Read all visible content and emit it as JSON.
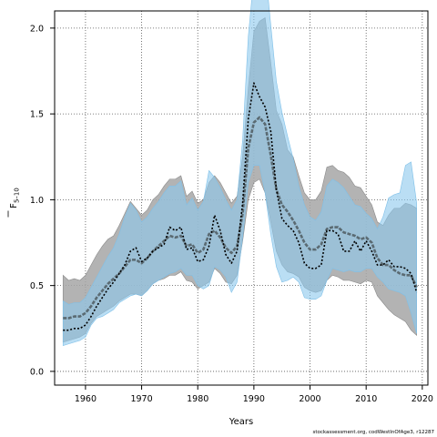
{
  "chart_data": {
    "type": "line",
    "xlabel": "Years",
    "ylabel_main": "F",
    "ylabel_sub": "5–10",
    "xlim": [
      1954.5,
      2021
    ],
    "ylim": [
      -0.08,
      2.1
    ],
    "xticks": [
      1960,
      1970,
      1980,
      1990,
      2000,
      2010,
      2020
    ],
    "yticks": [
      0.0,
      0.5,
      1.0,
      1.5,
      2.0
    ],
    "ytick_labels": [
      "0.0",
      "0.5",
      "1.0",
      "1.5",
      "2.0"
    ],
    "grid": true,
    "colors": {
      "gray_band": "#a6a6a6",
      "blue_band": "#8cc8ec",
      "gray_line": "#5a6a72",
      "dotted_line": "#000000"
    },
    "x": [
      1956,
      1957,
      1958,
      1959,
      1960,
      1961,
      1962,
      1963,
      1964,
      1965,
      1966,
      1967,
      1968,
      1969,
      1970,
      1971,
      1972,
      1973,
      1974,
      1975,
      1976,
      1977,
      1978,
      1979,
      1980,
      1981,
      1982,
      1983,
      1984,
      1985,
      1986,
      1987,
      1988,
      1989,
      1990,
      1991,
      1992,
      1993,
      1994,
      1995,
      1996,
      1997,
      1998,
      1999,
      2000,
      2001,
      2002,
      2003,
      2004,
      2005,
      2006,
      2007,
      2008,
      2009,
      2010,
      2011,
      2012,
      2013,
      2014,
      2015,
      2016,
      2017,
      2018,
      2019
    ],
    "series": [
      {
        "kind": "band",
        "values_upper": [
          0.56,
          0.53,
          0.54,
          0.53,
          0.56,
          0.62,
          0.68,
          0.73,
          0.77,
          0.79,
          0.85,
          0.92,
          0.99,
          0.95,
          0.91,
          0.94,
          1.0,
          1.03,
          1.08,
          1.12,
          1.12,
          1.14,
          1.02,
          1.05,
          0.98,
          1.0,
          1.1,
          1.14,
          1.1,
          1.04,
          0.98,
          1.02,
          1.25,
          1.65,
          1.98,
          2.04,
          2.06,
          1.8,
          1.52,
          1.44,
          1.29,
          1.25,
          1.14,
          1.04,
          1.0,
          1.0,
          1.05,
          1.19,
          1.2,
          1.17,
          1.16,
          1.13,
          1.08,
          1.07,
          1.02,
          0.97,
          0.87,
          0.85,
          0.91,
          0.95,
          0.95,
          0.98,
          0.97,
          0.95
        ],
        "values_lower": [
          0.17,
          0.18,
          0.19,
          0.2,
          0.22,
          0.28,
          0.32,
          0.34,
          0.36,
          0.38,
          0.41,
          0.43,
          0.45,
          0.45,
          0.44,
          0.47,
          0.51,
          0.53,
          0.54,
          0.56,
          0.56,
          0.58,
          0.53,
          0.52,
          0.48,
          0.5,
          0.52,
          0.6,
          0.57,
          0.52,
          0.51,
          0.56,
          0.76,
          1.0,
          1.1,
          1.12,
          1.04,
          0.87,
          0.7,
          0.62,
          0.58,
          0.57,
          0.55,
          0.49,
          0.47,
          0.46,
          0.47,
          0.53,
          0.56,
          0.55,
          0.53,
          0.53,
          0.52,
          0.51,
          0.53,
          0.52,
          0.44,
          0.4,
          0.36,
          0.33,
          0.31,
          0.29,
          0.24,
          0.21
        ]
      },
      {
        "kind": "band",
        "values_upper": [
          0.41,
          0.39,
          0.4,
          0.4,
          0.43,
          0.49,
          0.55,
          0.61,
          0.67,
          0.72,
          0.8,
          0.9,
          0.98,
          0.94,
          0.87,
          0.9,
          0.95,
          0.99,
          1.04,
          1.08,
          1.08,
          1.11,
          0.97,
          1.01,
          0.94,
          0.99,
          1.17,
          1.13,
          1.07,
          1.0,
          0.94,
          1.0,
          1.35,
          1.95,
          2.3,
          2.3,
          2.36,
          2.02,
          1.69,
          1.51,
          1.37,
          1.24,
          1.08,
          0.97,
          0.9,
          0.88,
          0.93,
          1.08,
          1.12,
          1.1,
          1.07,
          1.02,
          0.97,
          0.96,
          0.92,
          0.89,
          0.83,
          0.9,
          1.01,
          1.03,
          1.04,
          1.2,
          1.22,
          0.98
        ],
        "values_lower": [
          0.15,
          0.16,
          0.17,
          0.18,
          0.2,
          0.27,
          0.31,
          0.32,
          0.34,
          0.36,
          0.4,
          0.42,
          0.44,
          0.45,
          0.44,
          0.47,
          0.51,
          0.53,
          0.55,
          0.57,
          0.58,
          0.6,
          0.56,
          0.56,
          0.5,
          0.48,
          0.5,
          0.61,
          0.59,
          0.55,
          0.46,
          0.52,
          0.78,
          1.1,
          1.2,
          1.2,
          1.04,
          0.8,
          0.61,
          0.52,
          0.53,
          0.55,
          0.52,
          0.43,
          0.42,
          0.42,
          0.44,
          0.53,
          0.6,
          0.59,
          0.58,
          0.59,
          0.58,
          0.58,
          0.6,
          0.6,
          0.55,
          0.52,
          0.48,
          0.47,
          0.46,
          0.44,
          0.34,
          0.22
        ]
      },
      {
        "kind": "line",
        "values": [
          0.31,
          0.31,
          0.32,
          0.32,
          0.34,
          0.38,
          0.43,
          0.47,
          0.51,
          0.54,
          0.57,
          0.61,
          0.65,
          0.65,
          0.63,
          0.66,
          0.7,
          0.73,
          0.76,
          0.79,
          0.78,
          0.79,
          0.73,
          0.74,
          0.69,
          0.71,
          0.8,
          0.82,
          0.78,
          0.72,
          0.69,
          0.73,
          0.92,
          1.3,
          1.45,
          1.48,
          1.44,
          1.26,
          1.06,
          0.97,
          0.93,
          0.88,
          0.82,
          0.75,
          0.71,
          0.71,
          0.74,
          0.83,
          0.84,
          0.84,
          0.81,
          0.8,
          0.79,
          0.77,
          0.78,
          0.75,
          0.66,
          0.62,
          0.62,
          0.59,
          0.57,
          0.56,
          0.56,
          0.49
        ]
      },
      {
        "kind": "line",
        "values": [
          0.24,
          0.24,
          0.25,
          0.25,
          0.27,
          0.32,
          0.38,
          0.43,
          0.48,
          0.52,
          0.57,
          0.62,
          0.7,
          0.72,
          0.64,
          0.66,
          0.7,
          0.72,
          0.74,
          0.84,
          0.82,
          0.84,
          0.71,
          0.72,
          0.64,
          0.65,
          0.73,
          0.91,
          0.82,
          0.68,
          0.63,
          0.7,
          0.98,
          1.47,
          1.68,
          1.6,
          1.54,
          1.4,
          1.06,
          0.89,
          0.85,
          0.82,
          0.75,
          0.63,
          0.6,
          0.6,
          0.62,
          0.82,
          0.82,
          0.8,
          0.7,
          0.7,
          0.76,
          0.7,
          0.76,
          0.7,
          0.62,
          0.62,
          0.65,
          0.61,
          0.61,
          0.6,
          0.57,
          0.46
        ]
      }
    ]
  },
  "footer": {
    "credit": "stockassessment.org, codWestInOfAge3, r12287"
  }
}
